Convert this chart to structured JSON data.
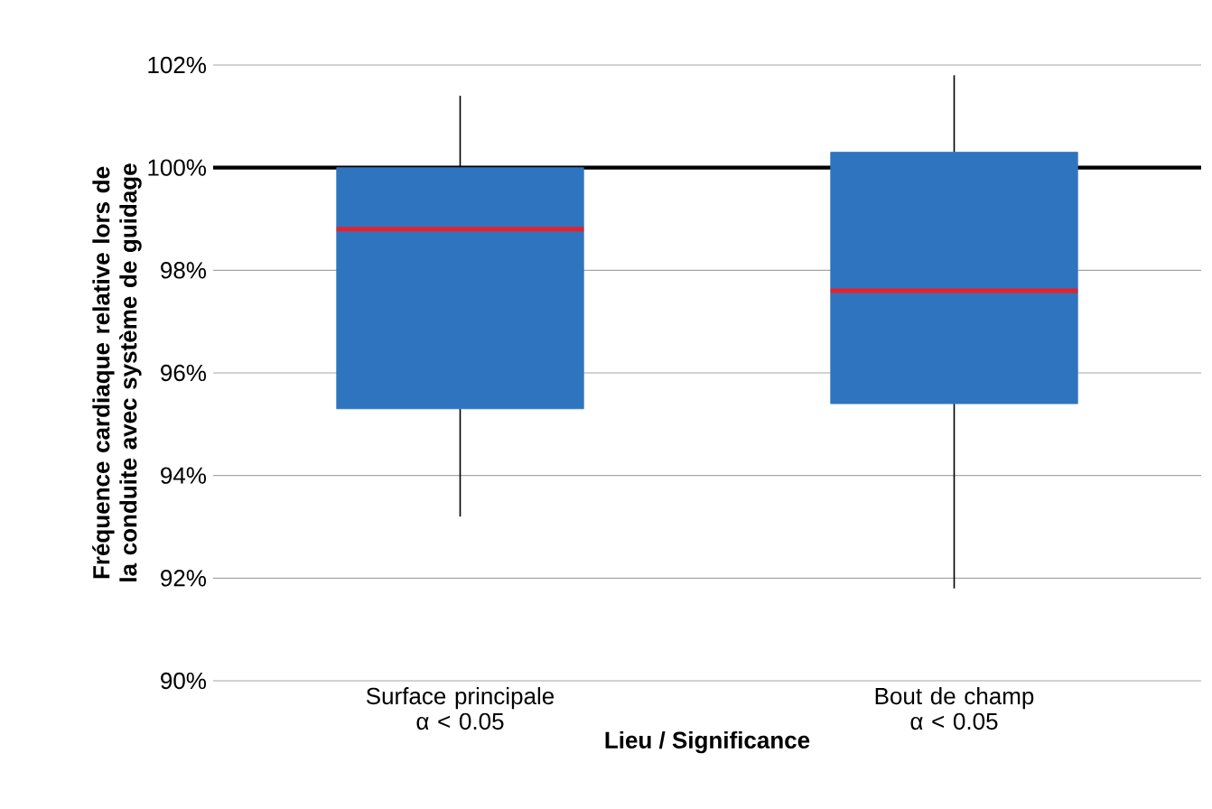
{
  "chart_data": {
    "type": "box",
    "xlabel": "Lieu / Significance",
    "ylabel": "Fréquence cardiaque relative lors de la conduite avec système de guidage",
    "categories": [
      "Surface principale α < 0.05",
      "Bout de champ α < 0.05"
    ],
    "series": [
      {
        "color": "#2f74bf",
        "boxes": [
          {
            "low": 93.2,
            "q1": 95.3,
            "median": 98.8,
            "q3": 100.0,
            "high": 101.4
          },
          {
            "low": 91.8,
            "q1": 95.4,
            "median": 97.6,
            "q3": 100.3,
            "high": 101.8
          }
        ]
      }
    ],
    "ylim": [
      90,
      102
    ],
    "yticks": [
      {
        "value": 90,
        "label": "90%"
      },
      {
        "value": 92,
        "label": "92%"
      },
      {
        "value": 94,
        "label": "94%"
      },
      {
        "value": 96,
        "label": "96%"
      },
      {
        "value": 98,
        "label": "98%"
      },
      {
        "value": 100,
        "label": "100%"
      },
      {
        "value": 102,
        "label": "102%"
      }
    ],
    "grid": "y",
    "ref_lines": [
      {
        "axis": "y",
        "value": 100,
        "color": "#000000"
      }
    ]
  }
}
